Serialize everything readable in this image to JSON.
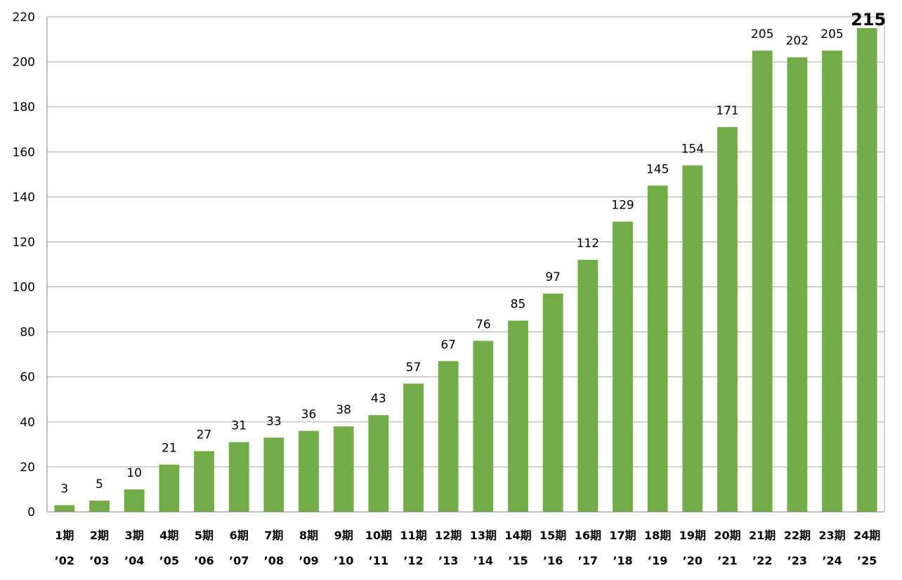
{
  "chart_data": {
    "type": "bar",
    "categories": [
      "1期",
      "2期",
      "3期",
      "4期",
      "5期",
      "6期",
      "7期",
      "8期",
      "9期",
      "10期",
      "11期",
      "12期",
      "13期",
      "14期",
      "15期",
      "16期",
      "17期",
      "18期",
      "19期",
      "20期",
      "21期",
      "22期",
      "23期",
      "24期"
    ],
    "years": [
      "’02",
      "’03",
      "’04",
      "’05",
      "’06",
      "’07",
      "’08",
      "’09",
      "’10",
      "’11",
      "’12",
      "’13",
      "’14",
      "’15",
      "’16",
      "’17",
      "’18",
      "’19",
      "’20",
      "’21",
      "’22",
      "’23",
      "’24",
      "’25"
    ],
    "values": [
      3,
      5,
      10,
      21,
      27,
      31,
      33,
      36,
      38,
      43,
      57,
      67,
      76,
      85,
      97,
      112,
      129,
      145,
      154,
      171,
      205,
      202,
      205,
      215
    ],
    "ylim": [
      0,
      220
    ],
    "yticks": [
      0,
      20,
      40,
      60,
      80,
      100,
      120,
      140,
      160,
      180,
      200,
      220
    ],
    "grid": true,
    "bar_color": "#70ad47",
    "highlight_last_label": true
  }
}
